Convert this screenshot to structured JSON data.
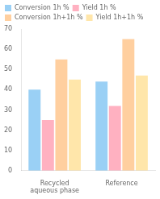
{
  "chart_data": {
    "type": "bar",
    "categories": [
      "Recycled\naqueous phase",
      "Reference"
    ],
    "series": [
      {
        "name": "Conversion 1h %",
        "values": [
          40,
          44
        ]
      },
      {
        "name": "Yield 1h %",
        "values": [
          25,
          32
        ]
      },
      {
        "name": "Conversion 1h+1h %",
        "values": [
          55,
          65
        ]
      },
      {
        "name": "Yield 1h+1h %",
        "values": [
          45,
          47
        ]
      }
    ],
    "ylim": [
      0,
      70
    ],
    "yticks": [
      0,
      10,
      20,
      30,
      40,
      50,
      60,
      70
    ],
    "grid": false,
    "legend": "upper left"
  }
}
